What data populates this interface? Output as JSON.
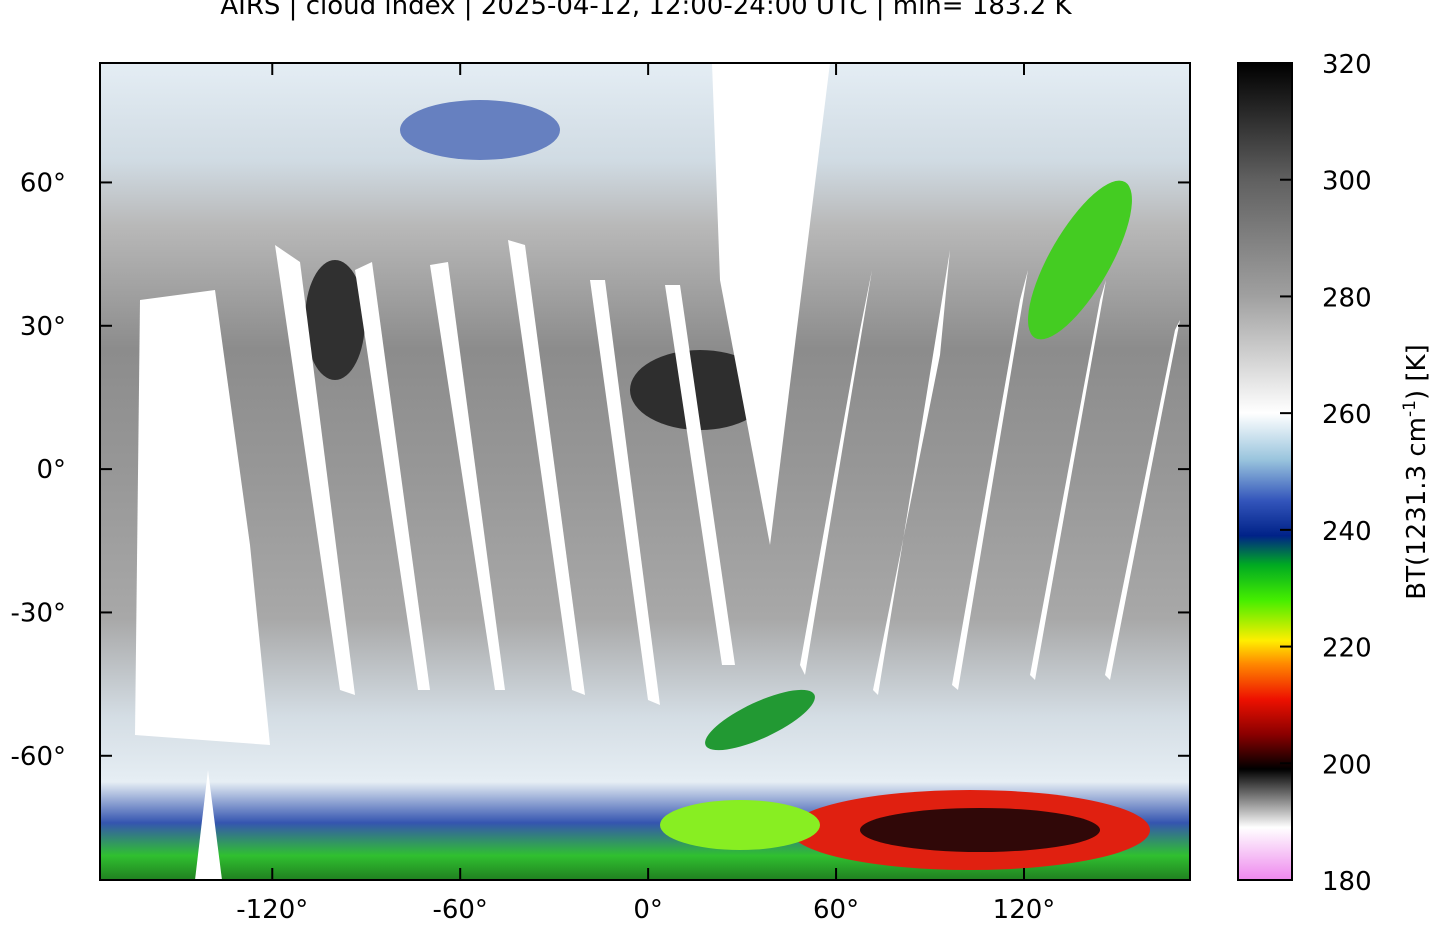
{
  "title": "AIRS | cloud index | 2025-04-12, 12:00-24:00 UTC | min= 183.2 K",
  "map": {
    "xlim": [
      -175,
      173
    ],
    "ylim": [
      -86,
      85
    ],
    "xticks": [
      {
        "value": -120,
        "label": "-120°"
      },
      {
        "value": -60,
        "label": "-60°"
      },
      {
        "value": 0,
        "label": "0°"
      },
      {
        "value": 60,
        "label": "60°"
      },
      {
        "value": 120,
        "label": "120°"
      }
    ],
    "yticks": [
      {
        "value": 60,
        "label": "60°"
      },
      {
        "value": 30,
        "label": "30°"
      },
      {
        "value": 0,
        "label": "0°"
      },
      {
        "value": -30,
        "label": "-30°"
      },
      {
        "value": -60,
        "label": "-60°"
      }
    ]
  },
  "colorbar": {
    "label": [
      "BT(1231.3 cm",
      "-1",
      ") [K]"
    ],
    "clim": [
      180,
      320
    ],
    "ticks": [
      180,
      200,
      220,
      240,
      260,
      280,
      300,
      320
    ],
    "colormap": [
      {
        "value": 180,
        "color": "#ee88ee"
      },
      {
        "value": 189,
        "color": "#ffffff"
      },
      {
        "value": 199,
        "color": "#000000"
      },
      {
        "value": 205,
        "color": "#8b0000"
      },
      {
        "value": 211,
        "color": "#ee1100"
      },
      {
        "value": 217,
        "color": "#ff8800"
      },
      {
        "value": 221,
        "color": "#ffee00"
      },
      {
        "value": 228,
        "color": "#44ee00"
      },
      {
        "value": 234,
        "color": "#00aa22"
      },
      {
        "value": 239,
        "color": "#002288"
      },
      {
        "value": 245,
        "color": "#3355bb"
      },
      {
        "value": 252,
        "color": "#99c4dd"
      },
      {
        "value": 260,
        "color": "#ffffff"
      },
      {
        "value": 280,
        "color": "#a0a0a0"
      },
      {
        "value": 300,
        "color": "#606060"
      },
      {
        "value": 320,
        "color": "#000000"
      }
    ]
  }
}
